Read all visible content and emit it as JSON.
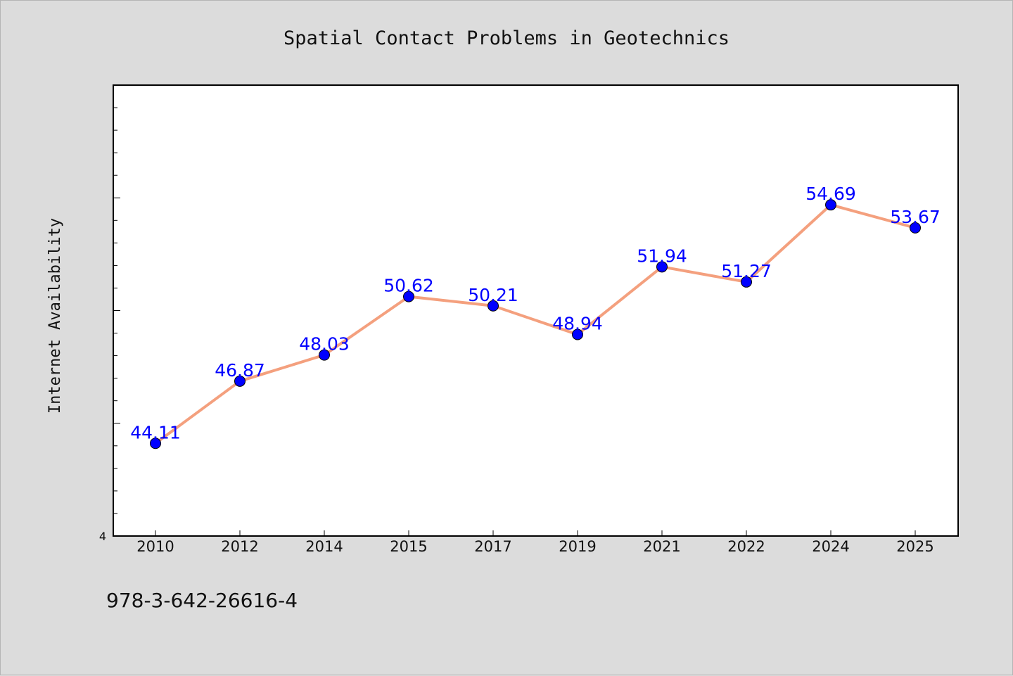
{
  "chart_data": {
    "type": "line",
    "title": "Spatial Contact Problems in Geotechnics",
    "xlabel": "",
    "ylabel": "Internet Availability",
    "categories": [
      "2010",
      "2012",
      "2014",
      "2015",
      "2017",
      "2019",
      "2021",
      "2022",
      "2024",
      "2025"
    ],
    "series": [
      {
        "values": [
          44.11,
          46.87,
          48.03,
          50.62,
          50.21,
          48.94,
          51.94,
          51.27,
          54.69,
          53.67
        ]
      }
    ],
    "data_labels": [
      "44.11",
      "46.87",
      "48.03",
      "50.62",
      "50.21",
      "48.94",
      "51.94",
      "51.27",
      "54.69",
      "53.67"
    ],
    "ylim": [
      40,
      60
    ],
    "y_tick_labels": [
      "4"
    ],
    "grid": false,
    "legend": "none",
    "line_color": "#f4a07e",
    "marker_color": "#0000ff",
    "label_color": "#0000ff"
  },
  "footer": {
    "isbn": "978-3-642-26616-4"
  }
}
